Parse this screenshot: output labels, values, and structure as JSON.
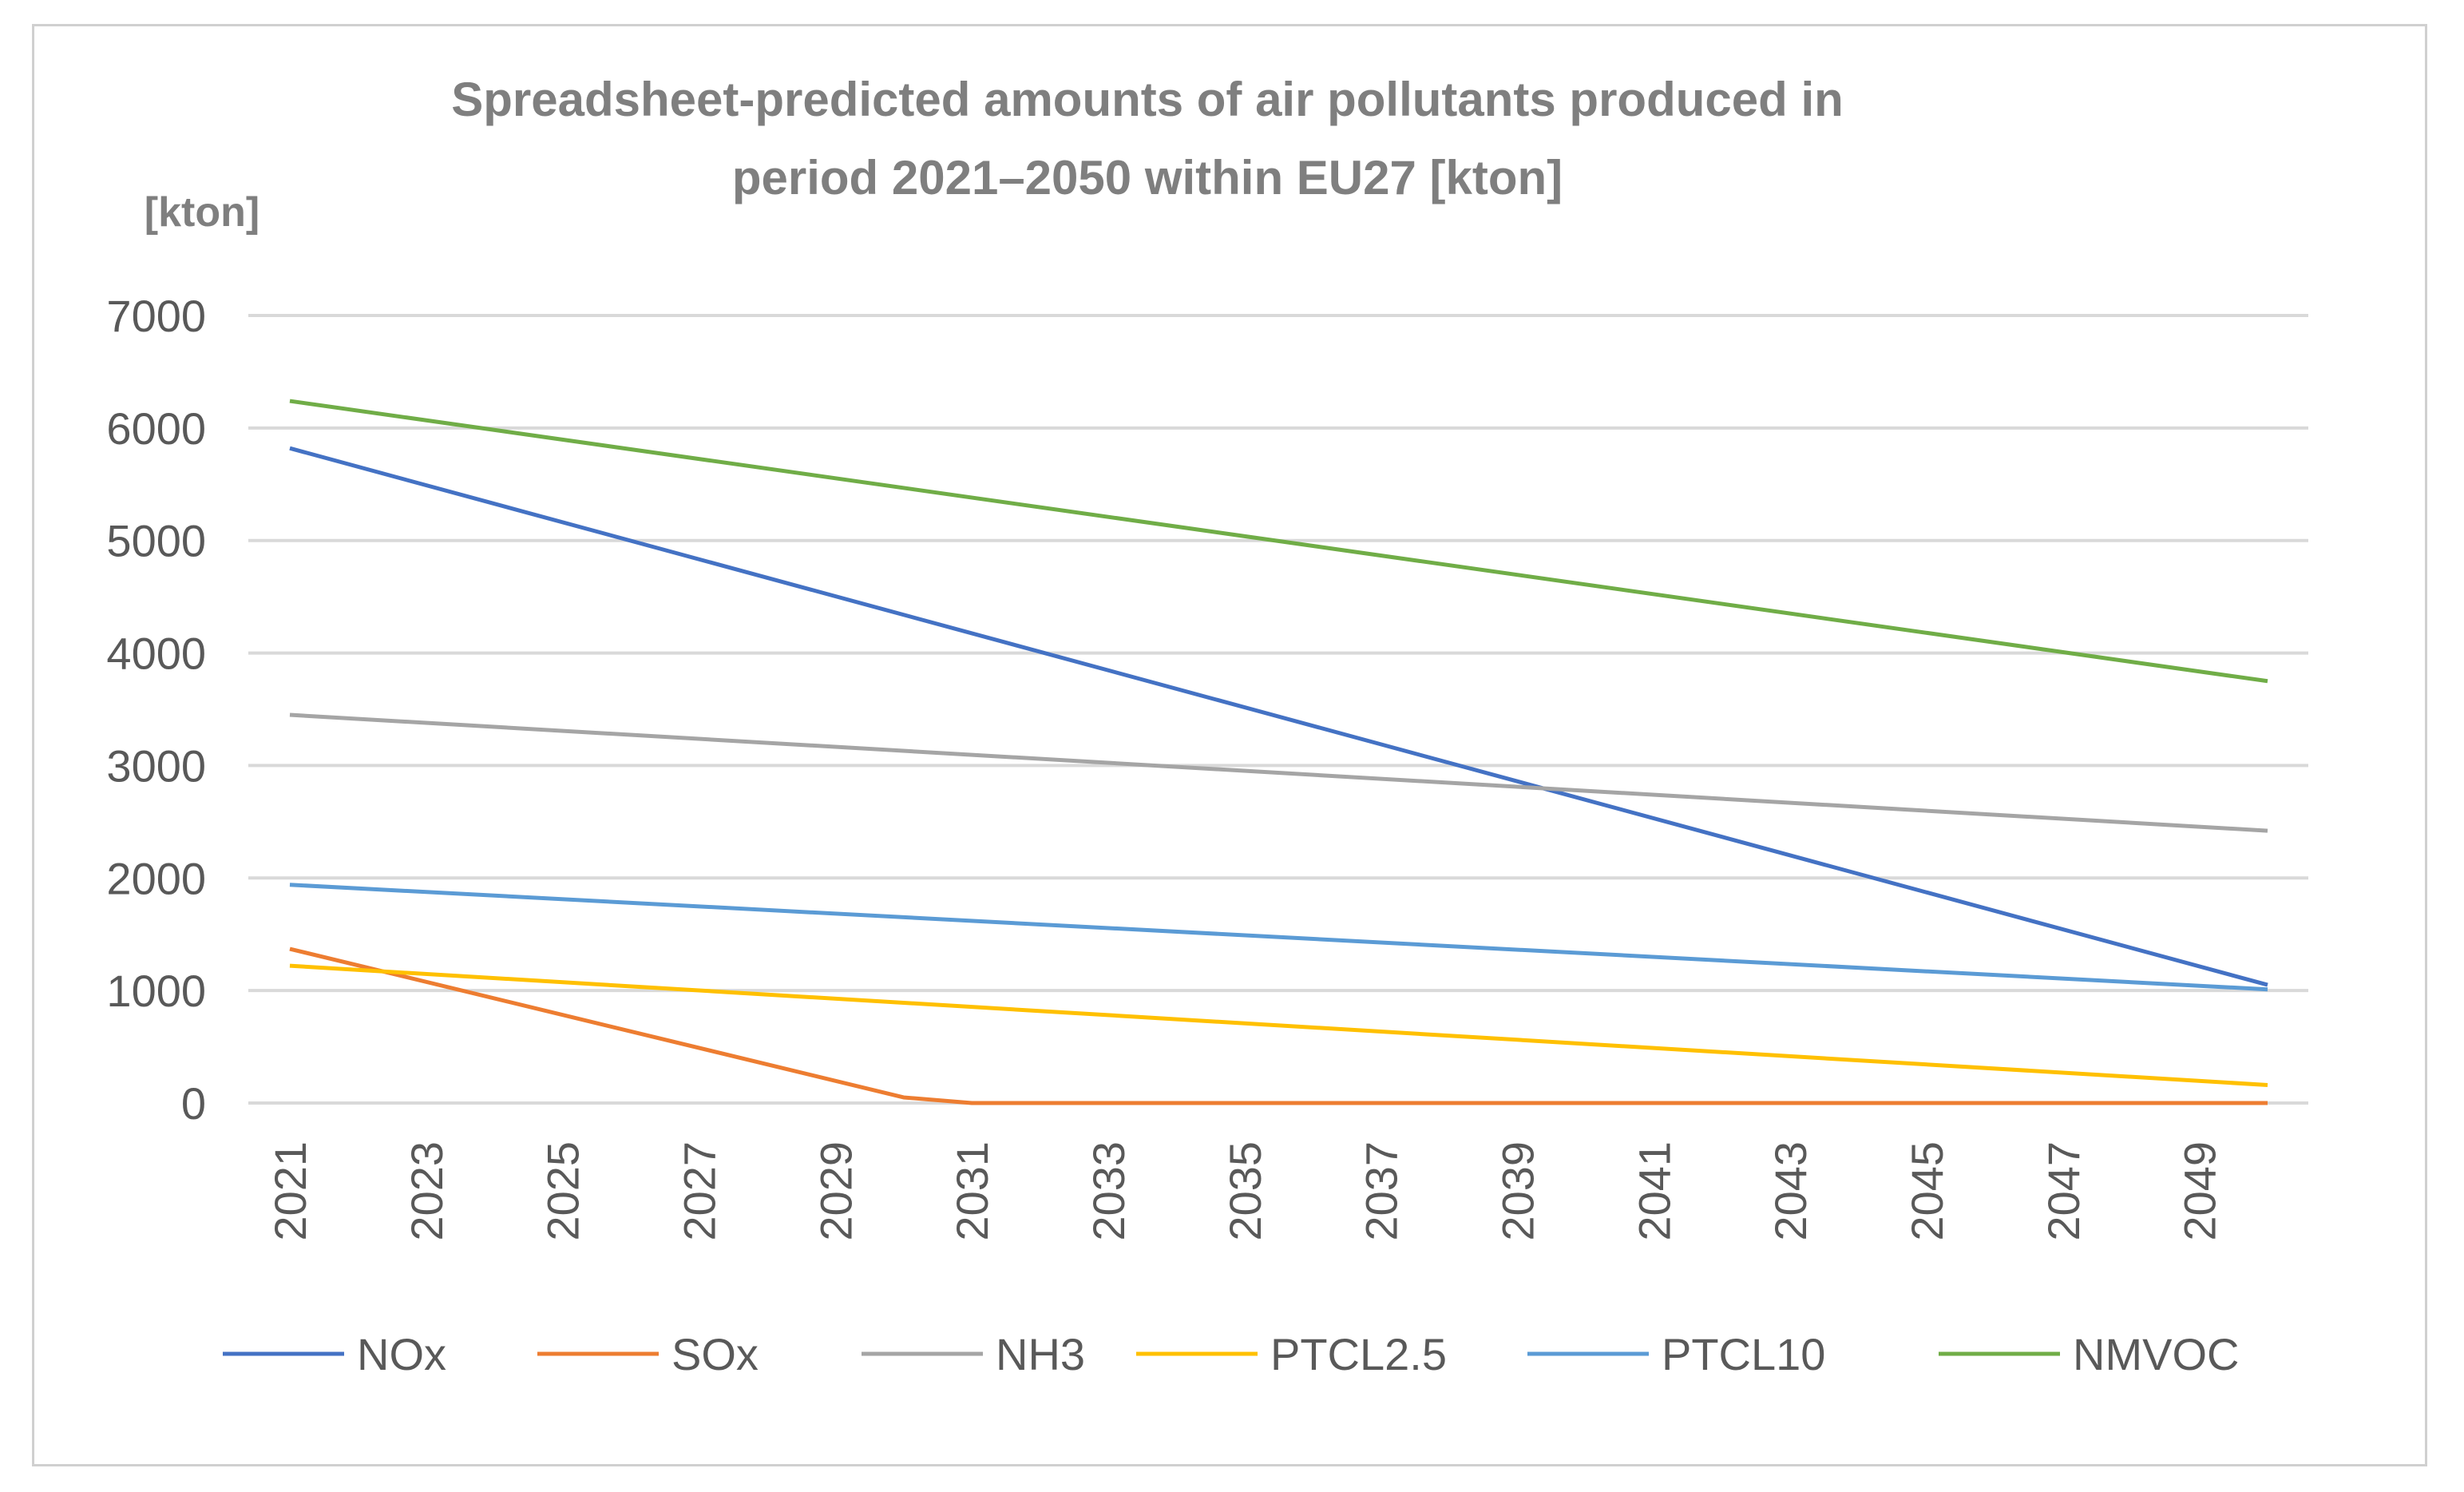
{
  "chart_data": {
    "type": "line",
    "title_lines": [
      "Spreadsheet-predicted amounts of air pollutants produced in",
      "period 2021–2050 within EU27 [kton]"
    ],
    "ylabel": "[kton]",
    "xlabel": "",
    "ylim": [
      0,
      7000
    ],
    "yticks": [
      "0",
      "1000",
      "2000",
      "3000",
      "4000",
      "5000",
      "6000",
      "7000"
    ],
    "x_start": 2021,
    "x_end": 2050,
    "xticks": [
      "2021",
      "2023",
      "2025",
      "2027",
      "2029",
      "2031",
      "2033",
      "2035",
      "2037",
      "2039",
      "2041",
      "2043",
      "2045",
      "2047",
      "2049"
    ],
    "grid": true,
    "legend_position": "bottom",
    "series": [
      {
        "name": "NOx",
        "color": "#4472C4",
        "points": [
          [
            2021,
            5820
          ],
          [
            2050,
            1050
          ]
        ]
      },
      {
        "name": "SOx",
        "color": "#ED7D31",
        "points": [
          [
            2021,
            1370
          ],
          [
            2030,
            50
          ],
          [
            2031,
            0
          ],
          [
            2050,
            0
          ]
        ]
      },
      {
        "name": "NH3",
        "color": "#A5A5A5",
        "points": [
          [
            2021,
            3450
          ],
          [
            2050,
            2420
          ]
        ]
      },
      {
        "name": "PTCL2.5",
        "color": "#FFC000",
        "points": [
          [
            2021,
            1220
          ],
          [
            2050,
            160
          ]
        ]
      },
      {
        "name": "PTCL10",
        "color": "#5B9BD5",
        "points": [
          [
            2021,
            1940
          ],
          [
            2050,
            1010
          ]
        ]
      },
      {
        "name": "NMVOC",
        "color": "#70AD47",
        "points": [
          [
            2021,
            6240
          ],
          [
            2050,
            3750
          ]
        ]
      }
    ]
  }
}
